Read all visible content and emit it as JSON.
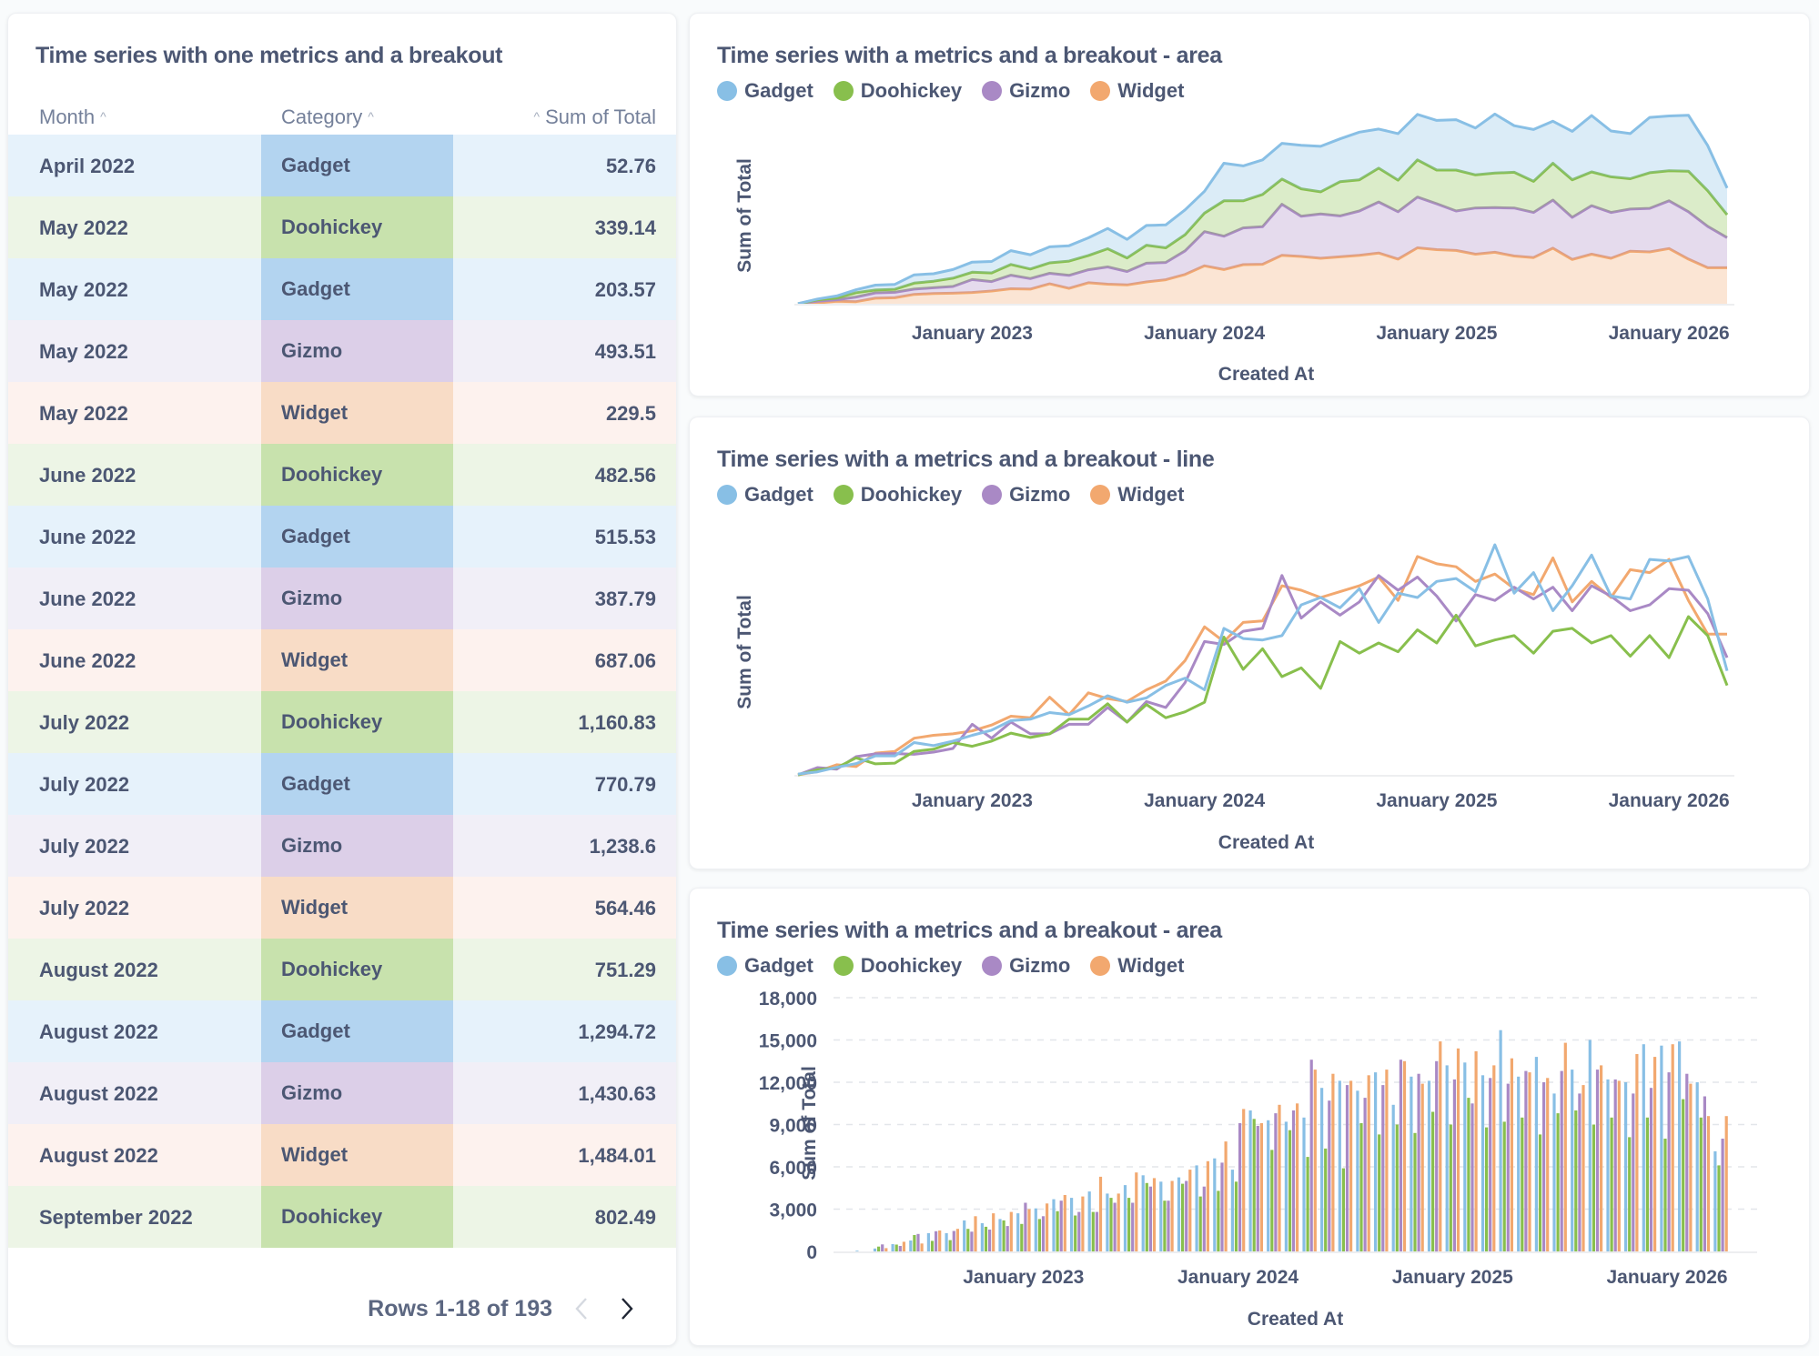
{
  "table_card": {
    "title": "Time series with one metrics and a breakout",
    "columns": [
      {
        "label": "Month",
        "sort": "asc"
      },
      {
        "label": "Category",
        "sort": "asc"
      },
      {
        "label": "Sum of Total",
        "sort": "asc"
      }
    ],
    "rows": [
      {
        "month": "April 2022",
        "category": "Gadget",
        "value": "52.76"
      },
      {
        "month": "May 2022",
        "category": "Doohickey",
        "value": "339.14"
      },
      {
        "month": "May 2022",
        "category": "Gadget",
        "value": "203.57"
      },
      {
        "month": "May 2022",
        "category": "Gizmo",
        "value": "493.51"
      },
      {
        "month": "May 2022",
        "category": "Widget",
        "value": "229.5"
      },
      {
        "month": "June 2022",
        "category": "Doohickey",
        "value": "482.56"
      },
      {
        "month": "June 2022",
        "category": "Gadget",
        "value": "515.53"
      },
      {
        "month": "June 2022",
        "category": "Gizmo",
        "value": "387.79"
      },
      {
        "month": "June 2022",
        "category": "Widget",
        "value": "687.06"
      },
      {
        "month": "July 2022",
        "category": "Doohickey",
        "value": "1,160.83"
      },
      {
        "month": "July 2022",
        "category": "Gadget",
        "value": "770.79"
      },
      {
        "month": "July 2022",
        "category": "Gizmo",
        "value": "1,238.6"
      },
      {
        "month": "July 2022",
        "category": "Widget",
        "value": "564.46"
      },
      {
        "month": "August 2022",
        "category": "Doohickey",
        "value": "751.29"
      },
      {
        "month": "August 2022",
        "category": "Gadget",
        "value": "1,294.72"
      },
      {
        "month": "August 2022",
        "category": "Gizmo",
        "value": "1,430.63"
      },
      {
        "month": "August 2022",
        "category": "Widget",
        "value": "1,484.01"
      },
      {
        "month": "September 2022",
        "category": "Doohickey",
        "value": "802.49"
      }
    ],
    "pagination": {
      "label": "Rows 1-18 of 193",
      "prev_icon": "chevron-left-icon",
      "next_icon": "chevron-right-icon"
    }
  },
  "colors": {
    "Gadget": "#88BFE5",
    "Doohickey": "#88BF4D",
    "Gizmo": "#A989C5",
    "Widget": "#F2A86F",
    "text": "#4C5773"
  },
  "row_colors": {
    "Gadget": {
      "row": "#E6F2FB",
      "cell": "#B3D4F0"
    },
    "Doohickey": {
      "row": "#EDF5E6",
      "cell": "#C8E2AD"
    },
    "Gizmo": {
      "row": "#F1EFF7",
      "cell": "#DCCFE8"
    },
    "Widget": {
      "row": "#FDF2EE",
      "cell": "#F8DCC6"
    }
  },
  "chart_data": [
    {
      "type": "area",
      "stacked": true,
      "title": "Time series with a metrics and a breakout - area",
      "xlabel": "Created At",
      "ylabel": "Sum of Total",
      "x_ticks": [
        "January 2023",
        "January 2024",
        "January 2025",
        "January 2026"
      ],
      "legend": [
        "Gadget",
        "Doohickey",
        "Gizmo",
        "Widget"
      ],
      "legend_position": "top-left",
      "series_ref": "shared_series"
    },
    {
      "type": "line",
      "title": "Time series with a metrics and a breakout - line",
      "xlabel": "Created At",
      "ylabel": "Sum of Total",
      "x_ticks": [
        "January 2023",
        "January 2024",
        "January 2025",
        "January 2026"
      ],
      "legend": [
        "Gadget",
        "Doohickey",
        "Gizmo",
        "Widget"
      ],
      "legend_position": "top-left",
      "series_ref": "shared_series"
    },
    {
      "type": "bar",
      "title": "Time series with a metrics and a breakout - area",
      "xlabel": "Created At",
      "ylabel": "Sum of Total",
      "x_ticks": [
        "January 2023",
        "January 2024",
        "January 2025",
        "January 2026"
      ],
      "y_ticks": [
        "0",
        "3,000",
        "6,000",
        "9,000",
        "12,000",
        "15,000",
        "18,000"
      ],
      "ylim": [
        0,
        18000
      ],
      "grid": true,
      "legend": [
        "Gadget",
        "Doohickey",
        "Gizmo",
        "Widget"
      ],
      "legend_position": "top-left",
      "series_ref": "shared_series"
    }
  ],
  "shared_series": {
    "x": [
      "2022-04",
      "2022-05",
      "2022-06",
      "2022-07",
      "2022-08",
      "2022-09",
      "2022-10",
      "2022-11",
      "2022-12",
      "2023-01",
      "2023-02",
      "2023-03",
      "2023-04",
      "2023-05",
      "2023-06",
      "2023-07",
      "2023-08",
      "2023-09",
      "2023-10",
      "2023-11",
      "2023-12",
      "2024-01",
      "2024-02",
      "2024-03",
      "2024-04",
      "2024-05",
      "2024-06",
      "2024-07",
      "2024-08",
      "2024-09",
      "2024-10",
      "2024-11",
      "2024-12",
      "2025-01",
      "2025-02",
      "2025-03",
      "2025-04",
      "2025-05",
      "2025-06",
      "2025-07",
      "2025-08",
      "2025-09",
      "2025-10",
      "2025-11",
      "2025-12",
      "2026-01",
      "2026-02",
      "2026-03",
      "2026-04"
    ],
    "series": [
      {
        "name": "Gadget",
        "values": [
          53,
          204,
          516,
          771,
          1295,
          1300,
          2200,
          2000,
          2300,
          2700,
          3050,
          3700,
          3800,
          4250,
          4100,
          4700,
          5400,
          4950,
          5250,
          6100,
          6600,
          5800,
          10000,
          9300,
          9200,
          9500,
          11600,
          12100,
          11400,
          12700,
          10400,
          12400,
          12100,
          13200,
          13400,
          12500,
          15700,
          12400,
          13800,
          11200,
          12900,
          15000,
          12200,
          12000,
          14700,
          14600,
          14900,
          12000,
          7100
        ]
      },
      {
        "name": "Doohickey",
        "values": [
          0,
          339,
          483,
          1161,
          751,
          802,
          1600,
          1750,
          2200,
          1950,
          2300,
          2850,
          2550,
          2800,
          3800,
          3800,
          4850,
          3600,
          4800,
          3900,
          4300,
          4950,
          9400,
          7200,
          8600,
          6700,
          7300,
          5900,
          9100,
          8300,
          9000,
          8400,
          9900,
          9000,
          10900,
          8800,
          9200,
          9500,
          8300,
          9800,
          10000,
          9000,
          9500,
          8100,
          9500,
          8000,
          10800,
          9500,
          6100
        ]
      },
      {
        "name": "Gizmo",
        "values": [
          0,
          494,
          388,
          1239,
          1431,
          1450,
          1400,
          1550,
          1800,
          3450,
          2500,
          3600,
          2800,
          2800,
          3450,
          3450,
          4600,
          3600,
          5000,
          4600,
          6300,
          9100,
          8900,
          9800,
          10000,
          13600,
          10700,
          11800,
          10900,
          11800,
          13600,
          12600,
          13500,
          12200,
          10500,
          12300,
          11900,
          12800,
          12000,
          12800,
          11200,
          12900,
          12200,
          11200,
          11600,
          12700,
          12600,
          11000,
          8000
        ]
      },
      {
        "name": "Widget",
        "values": [
          0,
          230,
          687,
          564,
          1484,
          1600,
          2500,
          2700,
          2800,
          3000,
          3400,
          4000,
          3900,
          5300,
          4100,
          5600,
          5200,
          5000,
          5800,
          6400,
          7800,
          10100,
          9100,
          10400,
          10500,
          12900,
          12600,
          12100,
          12500,
          12900,
          13500,
          11900,
          14900,
          14400,
          14200,
          13200,
          13700,
          12700,
          12300,
          14800,
          11800,
          13200,
          12100,
          14000,
          13800,
          14700,
          11900,
          9600,
          9600
        ]
      }
    ]
  }
}
